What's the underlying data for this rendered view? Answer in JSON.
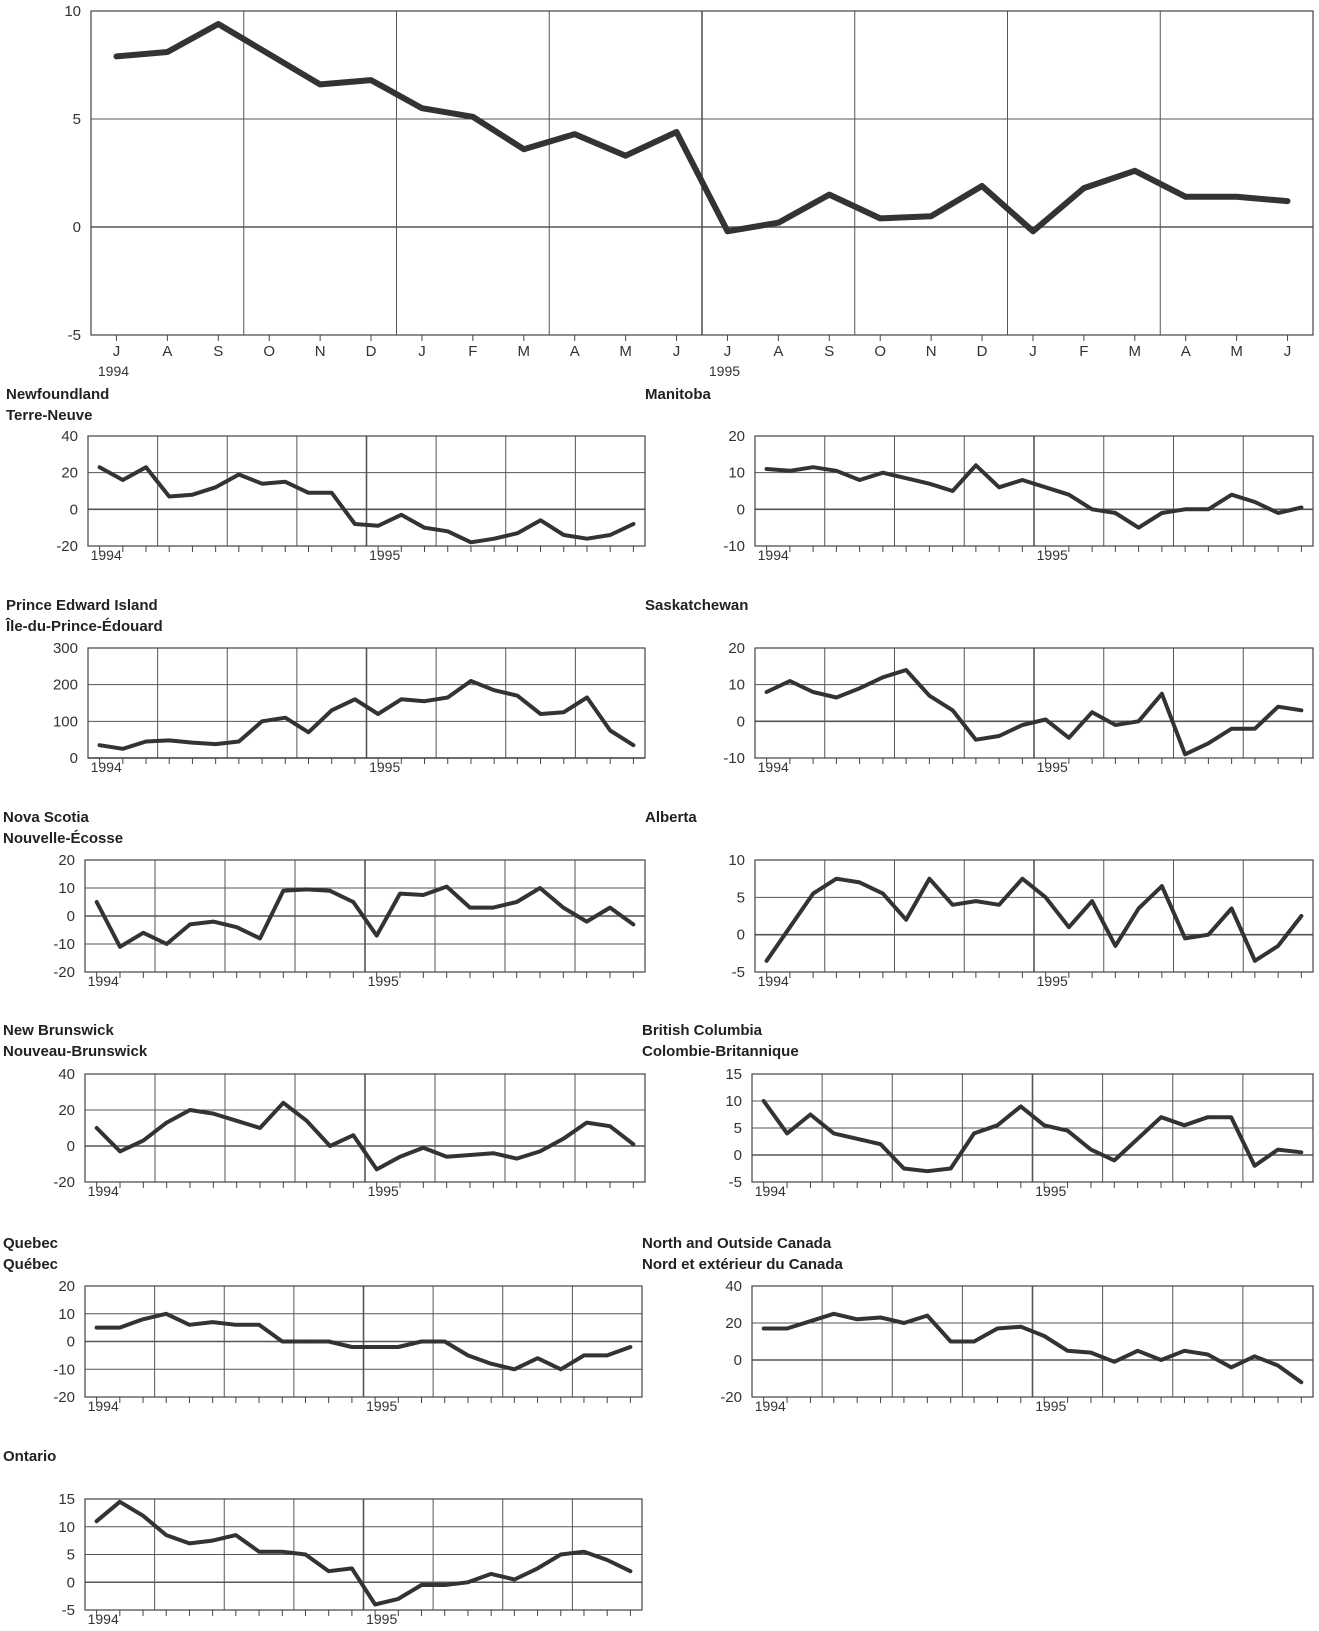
{
  "colors": {
    "line": "#333333",
    "grid": "#555555",
    "frame": "#444444",
    "text": "#333333"
  },
  "chart_data": [
    {
      "type": "line",
      "ylim": [
        -5,
        10
      ],
      "yticks": [
        10,
        5,
        0,
        -5
      ],
      "x": [
        "J",
        "A",
        "S",
        "O",
        "N",
        "D",
        "J",
        "F",
        "M",
        "A",
        "M",
        "J",
        "J",
        "A",
        "S",
        "O",
        "N",
        "D",
        "J",
        "F",
        "M",
        "A",
        "M",
        "J"
      ],
      "year_labels": [
        {
          "label": "1994",
          "index": 0
        },
        {
          "label": "1995",
          "index": 12
        }
      ],
      "values": [
        7.9,
        8.1,
        9.4,
        8.0,
        6.6,
        6.8,
        5.5,
        5.1,
        3.6,
        4.3,
        3.3,
        4.4,
        -0.2,
        0.2,
        1.5,
        0.4,
        0.5,
        1.9,
        -0.2,
        1.8,
        2.6,
        1.4,
        1.4,
        1.2
      ]
    },
    {
      "type": "line",
      "title": [
        "Newfoundland",
        "Terre-Neuve"
      ],
      "ylim": [
        -20,
        40
      ],
      "yticks": [
        40,
        20,
        0,
        -20
      ],
      "year_labels": [
        {
          "label": "1994",
          "index": 0
        },
        {
          "label": "1995",
          "index": 12
        }
      ],
      "values": [
        23,
        16,
        23,
        7,
        8,
        12,
        19,
        14,
        15,
        9,
        9,
        -8,
        -9,
        -3,
        -10,
        -12,
        -18,
        -16,
        -13,
        -6,
        -14,
        -16,
        -14,
        -8
      ]
    },
    {
      "type": "line",
      "title": [
        "Manitoba"
      ],
      "ylim": [
        -10,
        20
      ],
      "yticks": [
        20,
        10,
        0,
        -10
      ],
      "year_labels": [
        {
          "label": "1994",
          "index": 0
        },
        {
          "label": "1995",
          "index": 12
        }
      ],
      "values": [
        11,
        10.5,
        11.5,
        10.5,
        8,
        10,
        8.5,
        7,
        5,
        12,
        6,
        8,
        6,
        4,
        0,
        -1,
        -5,
        -1,
        0,
        0,
        4,
        2,
        -1,
        0.5
      ]
    },
    {
      "type": "line",
      "title": [
        "Prince Edward Island",
        "Île-du-Prince-Édouard"
      ],
      "ylim": [
        0,
        300
      ],
      "yticks": [
        300,
        200,
        100,
        0
      ],
      "year_labels": [
        {
          "label": "1994",
          "index": 0
        },
        {
          "label": "1995",
          "index": 12
        }
      ],
      "values": [
        35,
        25,
        45,
        48,
        42,
        38,
        45,
        100,
        110,
        70,
        130,
        160,
        120,
        160,
        155,
        165,
        210,
        185,
        170,
        120,
        125,
        165,
        75,
        35
      ]
    },
    {
      "type": "line",
      "title": [
        "Saskatchewan"
      ],
      "ylim": [
        -10,
        20
      ],
      "yticks": [
        20,
        10,
        0,
        -10
      ],
      "year_labels": [
        {
          "label": "1994",
          "index": 0
        },
        {
          "label": "1995",
          "index": 12
        }
      ],
      "values": [
        8,
        11,
        8,
        6.5,
        9,
        12,
        14,
        7,
        3,
        -5,
        -4,
        -1,
        0.5,
        -4.5,
        2.5,
        -1,
        0,
        7.5,
        -9,
        -6,
        -2,
        -2,
        4,
        3
      ]
    },
    {
      "type": "line",
      "title": [
        "Nova Scotia",
        "Nouvelle-Écosse"
      ],
      "ylim": [
        -20,
        20
      ],
      "yticks": [
        20,
        10,
        0,
        -10,
        -20
      ],
      "year_labels": [
        {
          "label": "1994",
          "index": 0
        },
        {
          "label": "1995",
          "index": 12
        }
      ],
      "values": [
        5,
        -11,
        -6,
        -10,
        -3,
        -2,
        -4,
        -8,
        9,
        9.5,
        9,
        5,
        -7,
        8,
        7.5,
        10.5,
        3,
        3,
        5,
        10,
        3,
        -2,
        3,
        -3
      ]
    },
    {
      "type": "line",
      "title": [
        "Alberta"
      ],
      "ylim": [
        -5,
        10
      ],
      "yticks": [
        10,
        5,
        0,
        -5
      ],
      "year_labels": [
        {
          "label": "1994",
          "index": 0
        },
        {
          "label": "1995",
          "index": 12
        }
      ],
      "values": [
        -3.5,
        1,
        5.5,
        7.5,
        7,
        5.5,
        2,
        7.5,
        4,
        4.5,
        4,
        7.5,
        5,
        1,
        4.5,
        -1.5,
        3.5,
        6.5,
        -0.5,
        0,
        3.5,
        -3.5,
        -1.5,
        2.5
      ]
    },
    {
      "type": "line",
      "title": [
        "New Brunswick",
        "Nouveau-Brunswick"
      ],
      "ylim": [
        -20,
        40
      ],
      "yticks": [
        40,
        20,
        0,
        -20
      ],
      "year_labels": [
        {
          "label": "1994",
          "index": 0
        },
        {
          "label": "1995",
          "index": 12
        }
      ],
      "values": [
        10,
        -3,
        3,
        13,
        20,
        18,
        14,
        10,
        24,
        14,
        0,
        6,
        -13,
        -6,
        -1,
        -6,
        -5,
        -4,
        -7,
        -3,
        4,
        13,
        11,
        1
      ]
    },
    {
      "type": "line",
      "title": [
        "British Columbia",
        "Colombie-Britannique"
      ],
      "ylim": [
        -5,
        15
      ],
      "yticks": [
        15,
        10,
        5,
        0,
        -5
      ],
      "year_labels": [
        {
          "label": "1994",
          "index": 0
        },
        {
          "label": "1995",
          "index": 12
        }
      ],
      "values": [
        10,
        4,
        7.5,
        4,
        3,
        2,
        -2.5,
        -3,
        -2.5,
        4,
        5.5,
        9,
        5.5,
        4.5,
        1,
        -1,
        3,
        7,
        5.5,
        7,
        7,
        -2,
        1,
        0.5
      ]
    },
    {
      "type": "line",
      "title": [
        "Quebec",
        "Québec"
      ],
      "ylim": [
        -20,
        20
      ],
      "yticks": [
        20,
        10,
        0,
        -10,
        -20
      ],
      "year_labels": [
        {
          "label": "1994",
          "index": 0
        },
        {
          "label": "1995",
          "index": 12
        }
      ],
      "values": [
        5,
        5,
        8,
        10,
        6,
        7,
        6,
        6,
        0,
        0,
        0,
        -2,
        -2,
        -2,
        0,
        0,
        -5,
        -8,
        -10,
        -6,
        -10,
        -5,
        -5,
        -2
      ]
    },
    {
      "type": "line",
      "title": [
        "North and Outside Canada",
        "Nord et extérieur du Canada"
      ],
      "ylim": [
        -20,
        40
      ],
      "yticks": [
        40,
        20,
        0,
        -20
      ],
      "year_labels": [
        {
          "label": "1994",
          "index": 0
        },
        {
          "label": "1995",
          "index": 12
        }
      ],
      "values": [
        17,
        17,
        21,
        25,
        22,
        23,
        20,
        24,
        10,
        10,
        17,
        18,
        13,
        5,
        4,
        -1,
        5,
        0,
        5,
        3,
        -4,
        2,
        -3,
        -12
      ]
    },
    {
      "type": "line",
      "title": [
        "Ontario"
      ],
      "ylim": [
        -5,
        15
      ],
      "yticks": [
        15,
        10,
        5,
        0,
        -5
      ],
      "year_labels": [
        {
          "label": "1994",
          "index": 0
        },
        {
          "label": "1995",
          "index": 12
        }
      ],
      "values": [
        11,
        14.5,
        12,
        8.5,
        7,
        7.5,
        8.5,
        5.5,
        5.5,
        5,
        2,
        2.5,
        -4,
        -3,
        -0.5,
        -0.5,
        0,
        1.5,
        0.5,
        2.5,
        5,
        5.5,
        4,
        2
      ]
    }
  ]
}
